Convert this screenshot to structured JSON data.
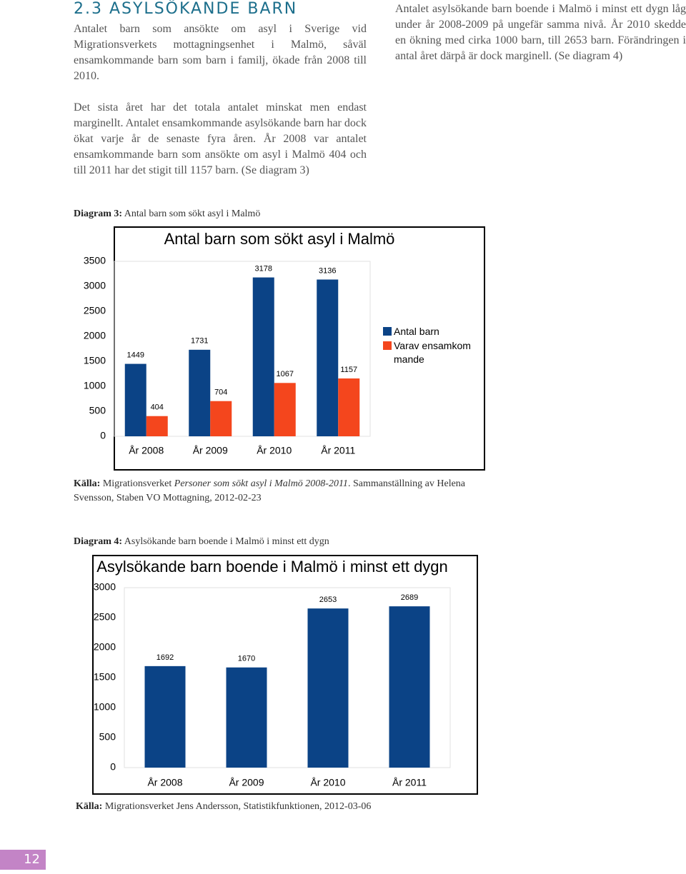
{
  "heading": "2.3 ASYLSÖKANDE BARN",
  "left_paragraphs": [
    "Antalet barn som ansökte om asyl i Sverige vid Migrationsverkets mottagningsenhet i Malmö, såväl ensamkommande barn som barn i familj, ökade från 2008 till 2010.",
    "Det sista året har det totala antalet minskat men endast marginellt. Antalet ensamkommande asylsökande barn har dock ökat varje år de senaste fyra åren. År 2008 var antalet ensamkommande barn som ansökte om asyl i Malmö 404 och till 2011 har det stigit till 1157 barn. (Se diagram 3)"
  ],
  "right_paragraph": "Antalet asylsökande barn boende i Malmö i minst ett dygn låg under år 2008-2009 på ungefär samma nivå. År 2010 skedde en ökning med cirka 1000 barn, till 2653 barn. Förändringen i antal året därpå är dock marginell. (Se diagram 4)",
  "diagram3": {
    "caption_label": "Diagram 3:",
    "caption_text": "Antal barn som sökt asyl i Malmö",
    "source_label": "Källa:",
    "source_text": "Migrationsverket",
    "source_italic": "Personer som sökt asyl i Malmö 2008-2011",
    "source_rest": ". Sammanställning av Helena Svensson, Staben VO Mottagning, 2012-02-23"
  },
  "diagram4": {
    "caption_label": "Diagram 4:",
    "caption_text": "Asylsökande barn boende i Malmö i minst ett dygn",
    "source_label": "Källa:",
    "source_text": "Migrationsverket Jens Andersson, Statistikfunktionen, 2012-03-06"
  },
  "chart_data": [
    {
      "type": "bar",
      "title": "Antal barn som sökt asyl i Malmö",
      "categories": [
        "År 2008",
        "År 2009",
        "År 2010",
        "År 2011"
      ],
      "series": [
        {
          "name": "Antal barn",
          "color": "#0b4386",
          "values": [
            1449,
            1731,
            3178,
            3136
          ]
        },
        {
          "name": "Varav ensamkommande",
          "color": "#f4461d",
          "values": [
            404,
            704,
            1067,
            1157
          ]
        }
      ],
      "ylim": [
        0,
        3500
      ],
      "yticks": [
        0,
        500,
        1000,
        1500,
        2000,
        2500,
        3000,
        3500
      ],
      "grid": false,
      "legend": "right"
    },
    {
      "type": "bar",
      "title": "Asylsökande barn boende i Malmö i minst ett dygn",
      "categories": [
        "År 2008",
        "År 2009",
        "År 2010",
        "År 2011"
      ],
      "values": [
        1692,
        1670,
        2653,
        2689
      ],
      "color": "#0b4386",
      "ylim": [
        0,
        3000
      ],
      "yticks": [
        0,
        500,
        1000,
        1500,
        2000,
        2500,
        3000
      ],
      "grid": false
    }
  ],
  "page_number": "12"
}
